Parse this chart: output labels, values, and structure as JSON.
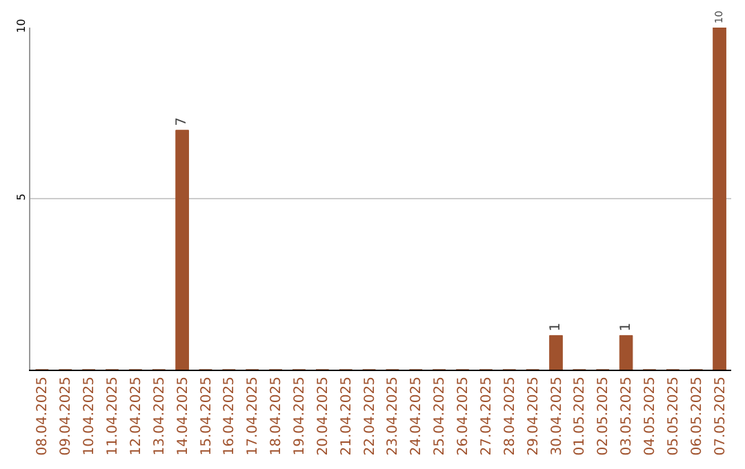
{
  "chart_data": {
    "type": "bar",
    "categories": [
      "08.04.2025",
      "09.04.2025",
      "10.04.2025",
      "11.04.2025",
      "12.04.2025",
      "13.04.2025",
      "14.04.2025",
      "15.04.2025",
      "16.04.2025",
      "17.04.2025",
      "18.04.2025",
      "19.04.2025",
      "20.04.2025",
      "21.04.2025",
      "22.04.2025",
      "23.04.2025",
      "24.04.2025",
      "25.04.2025",
      "26.04.2025",
      "27.04.2025",
      "28.04.2025",
      "29.04.2025",
      "30.04.2025",
      "01.05.2025",
      "02.05.2025",
      "03.05.2025",
      "04.05.2025",
      "05.05.2025",
      "06.05.2025",
      "07.05.2025"
    ],
    "values": [
      0,
      0,
      0,
      0,
      0,
      0,
      7,
      0,
      0,
      0,
      0,
      0,
      0,
      0,
      0,
      0,
      0,
      0,
      0,
      0,
      0,
      0,
      1,
      0,
      0,
      1,
      0,
      0,
      0,
      10
    ],
    "value_labels": [
      null,
      null,
      null,
      null,
      null,
      null,
      "7",
      null,
      null,
      null,
      null,
      null,
      null,
      null,
      null,
      null,
      null,
      null,
      null,
      null,
      null,
      null,
      "1",
      null,
      null,
      "1",
      null,
      null,
      null,
      "10"
    ],
    "color": "#a0522d",
    "ylim": [
      0,
      10
    ],
    "yticks": [
      5,
      10
    ],
    "grid": "y",
    "legend": false
  }
}
